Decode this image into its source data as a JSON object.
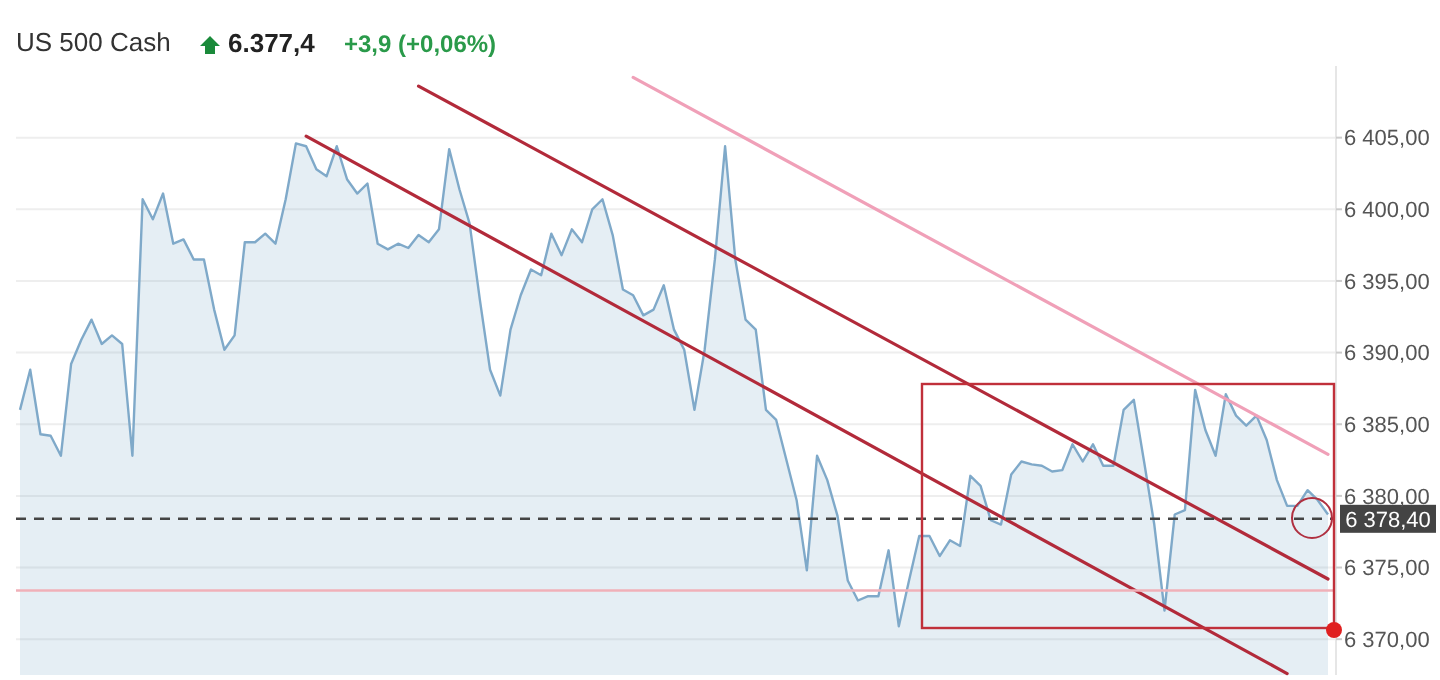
{
  "chart_data": {
    "type": "area",
    "title": "US 500 Cash",
    "annotations": [
      "6.377,4",
      "+3,9 (+0,06%)"
    ],
    "categories": [
      null,
      null,
      null,
      null,
      null,
      null,
      null,
      null,
      null,
      null,
      null,
      null,
      null,
      null,
      null,
      null,
      null,
      null,
      null,
      null,
      null,
      null,
      null,
      null,
      null,
      null,
      null,
      null,
      null,
      null,
      null,
      null,
      null,
      null,
      null,
      null,
      null,
      null,
      null,
      null,
      null,
      null,
      null,
      null,
      null,
      null,
      null,
      null,
      null,
      null,
      null,
      null,
      null,
      null,
      null,
      null,
      null,
      null,
      null,
      null,
      null,
      null,
      null,
      null,
      null,
      null,
      null,
      null,
      null,
      null,
      null,
      null,
      null,
      null,
      null,
      null,
      null,
      null,
      null,
      null,
      null,
      null,
      null,
      null,
      null,
      null,
      null,
      null,
      null,
      null,
      null,
      null,
      null,
      null,
      null,
      null,
      null,
      null,
      null,
      null,
      null,
      null,
      null,
      null,
      null,
      null,
      null,
      null,
      null,
      null,
      null,
      null,
      null,
      null,
      null,
      null,
      null,
      null,
      null,
      null,
      null,
      null,
      null,
      null,
      null,
      null,
      null,
      null,
      null
    ],
    "ylim": [
      6367.5,
      6410
    ],
    "yticks": [
      {
        "value": 6370,
        "label": "6 370,00"
      },
      {
        "value": 6375,
        "label": "6 375,00"
      },
      {
        "value": 6380,
        "label": "6 380,00"
      },
      {
        "value": 6385,
        "label": "6 385,00"
      },
      {
        "value": 6390,
        "label": "6 390,00"
      },
      {
        "value": 6395,
        "label": "6 395,00"
      },
      {
        "value": 6400,
        "label": "6 400,00"
      },
      {
        "value": 6405,
        "label": "6 405,00"
      }
    ],
    "tick_labels": "y",
    "grid": "y",
    "series": [
      {
        "color": "#7fa9c9",
        "values": [
          6386.0,
          6388.8,
          6384.3,
          6384.2,
          6382.8,
          6389.2,
          6390.9,
          6392.3,
          6390.6,
          6391.2,
          6390.6,
          6382.8,
          6400.7,
          6399.3,
          6401.1,
          6397.6,
          6397.9,
          6396.5,
          6396.5,
          6393.0,
          6390.2,
          6391.2,
          6397.7,
          6397.7,
          6398.3,
          6397.6,
          6400.7,
          6404.6,
          6404.4,
          6402.8,
          6402.3,
          6404.4,
          6402.1,
          6401.1,
          6401.8,
          6397.6,
          6397.2,
          6397.6,
          6397.3,
          6398.2,
          6397.7,
          6398.6,
          6404.2,
          6401.4,
          6399.0,
          6393.7,
          6388.8,
          6387.0,
          6391.6,
          6394.0,
          6395.8,
          6395.4,
          6398.3,
          6396.8,
          6398.6,
          6397.7,
          6400.0,
          6400.7,
          6398.2,
          6394.4,
          6394.0,
          6392.6,
          6393.0,
          6394.7,
          6391.6,
          6390.2,
          6386.0,
          6390.2,
          6396.5,
          6404.4,
          6396.5,
          6392.3,
          6391.6,
          6386.0,
          6385.3,
          6382.5,
          6379.7,
          6374.8,
          6382.8,
          6381.1,
          6378.6,
          6374.1,
          6372.7,
          6373.0,
          6373.0,
          6376.2,
          6370.9,
          6374.1,
          6377.2,
          6377.2,
          6375.8,
          6376.9,
          6376.5,
          6381.4,
          6380.7,
          6378.3,
          6378.0,
          6381.5,
          6382.4,
          6382.2,
          6382.1,
          6381.7,
          6381.8,
          6383.6,
          6382.4,
          6383.6,
          6382.1,
          6382.1,
          6386.0,
          6386.7,
          6382.4,
          6378.0,
          6372.0,
          6378.7,
          6379.0,
          6387.4,
          6384.6,
          6382.8,
          6387.1,
          6385.6,
          6384.9,
          6385.6,
          6383.9,
          6381.1,
          6379.3,
          6379.3,
          6380.4,
          6379.7,
          6378.7
        ]
      },
      {
        "type": "line",
        "color": "#b22a3a",
        "values": [
          null,
          null,
          null,
          null,
          null,
          null,
          null,
          null,
          null,
          null,
          null,
          null,
          null,
          null,
          null,
          null,
          null,
          null,
          null,
          null,
          null,
          null,
          null,
          null,
          null,
          null,
          null,
          null,
          null,
          null,
          null,
          null,
          null,
          null,
          null,
          null,
          null,
          null,
          null,
          6408.6,
          null,
          null,
          null,
          null,
          null,
          null,
          null,
          null,
          null,
          null,
          null,
          null,
          null,
          null,
          null,
          null,
          null,
          null,
          null,
          null,
          null,
          null,
          null,
          null,
          null,
          null,
          null,
          null,
          null,
          null,
          null,
          null,
          null,
          null,
          null,
          null,
          null,
          null,
          null,
          null,
          null,
          null,
          null,
          null,
          null,
          null,
          null,
          null,
          null,
          null,
          null,
          null,
          null,
          null,
          null,
          null,
          null,
          null,
          null,
          null,
          null,
          null,
          null,
          null,
          null,
          null,
          null,
          null,
          null,
          null,
          null,
          null,
          null,
          null,
          null,
          null,
          null,
          null,
          null,
          null,
          null,
          null,
          null,
          null,
          null,
          null,
          null,
          null,
          6374.2
        ]
      },
      {
        "type": "line",
        "color": "#b22a3a",
        "values": [
          null,
          null,
          null,
          null,
          null,
          null,
          null,
          null,
          null,
          null,
          null,
          null,
          null,
          null,
          null,
          null,
          null,
          null,
          null,
          null,
          null,
          null,
          null,
          null,
          null,
          null,
          null,
          null,
          6405.1,
          null,
          null,
          null,
          null,
          null,
          null,
          null,
          null,
          null,
          null,
          null,
          null,
          null,
          null,
          null,
          null,
          null,
          null,
          null,
          null,
          null,
          null,
          null,
          null,
          null,
          null,
          null,
          null,
          null,
          null,
          null,
          null,
          null,
          null,
          null,
          null,
          null,
          null,
          null,
          null,
          null,
          null,
          null,
          null,
          null,
          null,
          null,
          null,
          null,
          null,
          null,
          null,
          null,
          null,
          null,
          null,
          null,
          null,
          null,
          null,
          null,
          null,
          null,
          null,
          null,
          null,
          null,
          null,
          null,
          null,
          null,
          null,
          null,
          null,
          null,
          null,
          null,
          null,
          null,
          null,
          null,
          null,
          null,
          null,
          null,
          null,
          null,
          null,
          null,
          null,
          null,
          null,
          null,
          null,
          null,
          6367.6,
          null,
          null,
          null,
          null
        ]
      },
      {
        "type": "line",
        "color": "#f0a0b8",
        "values": [
          null,
          null,
          null,
          null,
          null,
          null,
          null,
          null,
          null,
          null,
          null,
          null,
          null,
          null,
          null,
          null,
          null,
          null,
          null,
          null,
          null,
          null,
          null,
          null,
          null,
          null,
          null,
          null,
          null,
          null,
          null,
          null,
          null,
          null,
          null,
          null,
          null,
          null,
          null,
          null,
          null,
          null,
          null,
          null,
          null,
          null,
          null,
          null,
          null,
          null,
          null,
          null,
          null,
          null,
          null,
          null,
          null,
          null,
          null,
          null,
          6409.2,
          null,
          null,
          null,
          null,
          null,
          null,
          null,
          null,
          null,
          null,
          null,
          null,
          null,
          null,
          null,
          null,
          null,
          null,
          null,
          null,
          null,
          null,
          null,
          null,
          null,
          null,
          null,
          null,
          null,
          null,
          null,
          null,
          null,
          null,
          null,
          null,
          null,
          null,
          null,
          null,
          null,
          null,
          null,
          null,
          null,
          null,
          null,
          null,
          null,
          null,
          null,
          null,
          null,
          null,
          null,
          null,
          null,
          null,
          null,
          null,
          null,
          null,
          null,
          null,
          null,
          null,
          null,
          6382.9
        ]
      }
    ],
    "ref_lines": [
      {
        "axis": "y",
        "value": 6378.4,
        "label": "6 378,40",
        "color": "#444444",
        "line_style": "dashed"
      },
      {
        "axis": "y",
        "value": 6373.4,
        "color": "#f0b0b8",
        "line_style": "solid"
      }
    ]
  }
}
